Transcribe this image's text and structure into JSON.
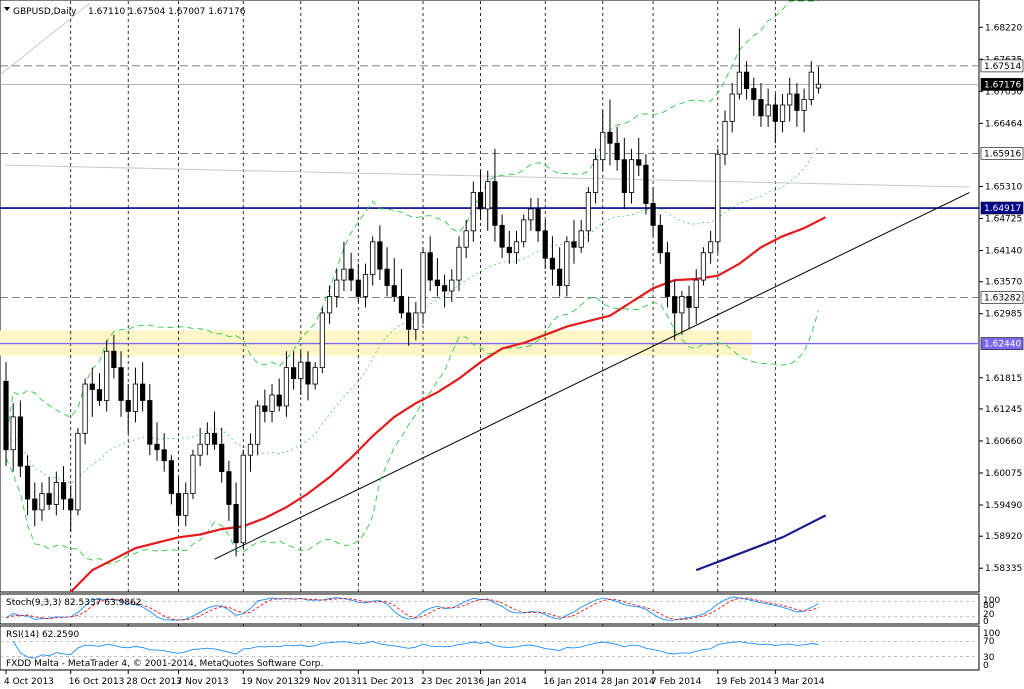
{
  "header": {
    "symbol": "GBPUSD,Daily",
    "ohlc": "1.67110 1.67504 1.67007 1.67176"
  },
  "chart_data": {
    "type": "candlestick",
    "title": "GBPUSD,Daily",
    "ylim": [
      1.579,
      1.687
    ],
    "y_ticks": [
      "1.68220",
      "1.67635",
      "1.67050",
      "1.66464",
      "1.65310",
      "1.64725",
      "1.64140",
      "1.63570",
      "1.62985",
      "1.61815",
      "1.61245",
      "1.60660",
      "1.60075",
      "1.59490",
      "1.58920",
      "1.58335"
    ],
    "x_ticks": [
      "4 Oct 2013",
      "16 Oct 2013",
      "28 Oct 2013",
      "7 Nov 2013",
      "19 Nov 2013",
      "29 Nov 2013",
      "11 Dec 2013",
      "23 Dec 2013",
      "6 Jan 2014",
      "16 Jan 2014",
      "28 Jan 2014",
      "7 Feb 2014",
      "19 Feb 2014",
      "3 Mar 2014"
    ],
    "price_labels": [
      {
        "value": 1.67514,
        "text": "1.67514"
      },
      {
        "value": 1.67176,
        "text": "1.67176"
      },
      {
        "value": 1.65916,
        "text": "1.65916"
      },
      {
        "value": 1.64917,
        "text": "1.64917"
      },
      {
        "value": 1.63282,
        "text": "1.63282"
      },
      {
        "value": 1.6244,
        "text": "1.62440"
      }
    ],
    "candles": [
      [
        1.6175,
        1.621,
        1.602,
        1.605
      ],
      [
        1.605,
        1.6135,
        1.601,
        1.611
      ],
      [
        1.611,
        1.614,
        1.6,
        1.602
      ],
      [
        1.602,
        1.604,
        1.593,
        1.596
      ],
      [
        1.596,
        1.599,
        1.591,
        1.594
      ],
      [
        1.594,
        1.599,
        1.592,
        1.597
      ],
      [
        1.597,
        1.6,
        1.594,
        1.595
      ],
      [
        1.595,
        1.601,
        1.593,
        1.599
      ],
      [
        1.599,
        1.602,
        1.594,
        1.596
      ],
      [
        1.596,
        1.5985,
        1.59,
        1.594
      ],
      [
        1.594,
        1.609,
        1.593,
        1.608
      ],
      [
        1.608,
        1.618,
        1.606,
        1.617
      ],
      [
        1.617,
        1.62,
        1.611,
        1.616
      ],
      [
        1.616,
        1.619,
        1.613,
        1.614
      ],
      [
        1.614,
        1.625,
        1.612,
        1.623
      ],
      [
        1.623,
        1.626,
        1.618,
        1.62
      ],
      [
        1.62,
        1.623,
        1.611,
        1.614
      ],
      [
        1.614,
        1.617,
        1.608,
        1.612
      ],
      [
        1.612,
        1.62,
        1.61,
        1.617
      ],
      [
        1.617,
        1.621,
        1.612,
        1.614
      ],
      [
        1.614,
        1.617,
        1.604,
        1.606
      ],
      [
        1.606,
        1.61,
        1.603,
        1.605
      ],
      [
        1.605,
        1.608,
        1.601,
        1.603
      ],
      [
        1.603,
        1.604,
        1.595,
        1.597
      ],
      [
        1.597,
        1.6,
        1.591,
        1.593
      ],
      [
        1.593,
        1.599,
        1.591,
        1.597
      ],
      [
        1.597,
        1.605,
        1.596,
        1.604
      ],
      [
        1.604,
        1.609,
        1.602,
        1.606
      ],
      [
        1.606,
        1.61,
        1.604,
        1.608
      ],
      [
        1.608,
        1.612,
        1.605,
        1.606
      ],
      [
        1.606,
        1.609,
        1.599,
        1.601
      ],
      [
        1.601,
        1.603,
        1.592,
        1.595
      ],
      [
        1.595,
        1.599,
        1.5855,
        1.588
      ],
      [
        1.588,
        1.605,
        1.587,
        1.604
      ],
      [
        1.604,
        1.608,
        1.601,
        1.606
      ],
      [
        1.606,
        1.614,
        1.604,
        1.613
      ],
      [
        1.613,
        1.616,
        1.61,
        1.612
      ],
      [
        1.612,
        1.617,
        1.61,
        1.615
      ],
      [
        1.615,
        1.618,
        1.612,
        1.613
      ],
      [
        1.613,
        1.623,
        1.611,
        1.62
      ],
      [
        1.62,
        1.623,
        1.616,
        1.618
      ],
      [
        1.618,
        1.623,
        1.615,
        1.621
      ],
      [
        1.621,
        1.623,
        1.614,
        1.617
      ],
      [
        1.617,
        1.621,
        1.616,
        1.62
      ],
      [
        1.62,
        1.631,
        1.619,
        1.63
      ],
      [
        1.63,
        1.635,
        1.628,
        1.633
      ],
      [
        1.633,
        1.638,
        1.631,
        1.636
      ],
      [
        1.636,
        1.643,
        1.634,
        1.638
      ],
      [
        1.638,
        1.641,
        1.634,
        1.636
      ],
      [
        1.636,
        1.639,
        1.632,
        1.633
      ],
      [
        1.633,
        1.639,
        1.631,
        1.637
      ],
      [
        1.637,
        1.644,
        1.635,
        1.643
      ],
      [
        1.643,
        1.646,
        1.636,
        1.638
      ],
      [
        1.638,
        1.642,
        1.633,
        1.635
      ],
      [
        1.635,
        1.64,
        1.632,
        1.633
      ],
      [
        1.633,
        1.638,
        1.629,
        1.63
      ],
      [
        1.63,
        1.633,
        1.624,
        1.627
      ],
      [
        1.627,
        1.632,
        1.625,
        1.63
      ],
      [
        1.63,
        1.642,
        1.628,
        1.641
      ],
      [
        1.641,
        1.644,
        1.634,
        1.636
      ],
      [
        1.636,
        1.64,
        1.633,
        1.635
      ],
      [
        1.635,
        1.637,
        1.631,
        1.634
      ],
      [
        1.634,
        1.638,
        1.632,
        1.636
      ],
      [
        1.636,
        1.644,
        1.634,
        1.642
      ],
      [
        1.642,
        1.647,
        1.64,
        1.645
      ],
      [
        1.645,
        1.654,
        1.643,
        1.652
      ],
      [
        1.652,
        1.656,
        1.647,
        1.649
      ],
      [
        1.649,
        1.656,
        1.645,
        1.654
      ],
      [
        1.654,
        1.66,
        1.643,
        1.646
      ],
      [
        1.646,
        1.648,
        1.64,
        1.642
      ],
      [
        1.642,
        1.645,
        1.639,
        1.641
      ],
      [
        1.641,
        1.645,
        1.639,
        1.643
      ],
      [
        1.643,
        1.648,
        1.642,
        1.647
      ],
      [
        1.647,
        1.651,
        1.645,
        1.649
      ],
      [
        1.649,
        1.651,
        1.643,
        1.645
      ],
      [
        1.645,
        1.647,
        1.638,
        1.64
      ],
      [
        1.64,
        1.644,
        1.635,
        1.638
      ],
      [
        1.638,
        1.642,
        1.633,
        1.635
      ],
      [
        1.635,
        1.644,
        1.633,
        1.643
      ],
      [
        1.643,
        1.647,
        1.639,
        1.642
      ],
      [
        1.642,
        1.647,
        1.641,
        1.645
      ],
      [
        1.645,
        1.653,
        1.643,
        1.652
      ],
      [
        1.652,
        1.66,
        1.65,
        1.658
      ],
      [
        1.658,
        1.667,
        1.656,
        1.663
      ],
      [
        1.663,
        1.669,
        1.657,
        1.661
      ],
      [
        1.661,
        1.664,
        1.656,
        1.658
      ],
      [
        1.658,
        1.662,
        1.649,
        1.652
      ],
      [
        1.652,
        1.66,
        1.65,
        1.658
      ],
      [
        1.658,
        1.662,
        1.655,
        1.657
      ],
      [
        1.657,
        1.659,
        1.648,
        1.65
      ],
      [
        1.65,
        1.653,
        1.644,
        1.646
      ],
      [
        1.646,
        1.648,
        1.639,
        1.641
      ],
      [
        1.641,
        1.643,
        1.631,
        1.633
      ],
      [
        1.633,
        1.636,
        1.625,
        1.63
      ],
      [
        1.63,
        1.634,
        1.626,
        1.633
      ],
      [
        1.633,
        1.635,
        1.627,
        1.631
      ],
      [
        1.631,
        1.638,
        1.628,
        1.636
      ],
      [
        1.636,
        1.642,
        1.635,
        1.641
      ],
      [
        1.641,
        1.645,
        1.639,
        1.643
      ],
      [
        1.643,
        1.66,
        1.641,
        1.659
      ],
      [
        1.659,
        1.667,
        1.657,
        1.665
      ],
      [
        1.665,
        1.672,
        1.663,
        1.67
      ],
      [
        1.67,
        1.682,
        1.669,
        1.674
      ],
      [
        1.674,
        1.676,
        1.669,
        1.671
      ],
      [
        1.671,
        1.673,
        1.666,
        1.669
      ],
      [
        1.669,
        1.672,
        1.664,
        1.666
      ],
      [
        1.666,
        1.671,
        1.664,
        1.668
      ],
      [
        1.668,
        1.67,
        1.661,
        1.665
      ],
      [
        1.665,
        1.67,
        1.663,
        1.668
      ],
      [
        1.668,
        1.673,
        1.665,
        1.67
      ],
      [
        1.67,
        1.672,
        1.664,
        1.667
      ],
      [
        1.667,
        1.671,
        1.663,
        1.669
      ],
      [
        1.669,
        1.676,
        1.668,
        1.674
      ],
      [
        1.6711,
        1.675,
        1.6701,
        1.6718
      ]
    ],
    "ma_red": [
      [
        9,
        1.579
      ],
      [
        12,
        1.583
      ],
      [
        15,
        1.585
      ],
      [
        18,
        1.587
      ],
      [
        21,
        1.588
      ],
      [
        24,
        1.589
      ],
      [
        27,
        1.5895
      ],
      [
        30,
        1.5905
      ],
      [
        33,
        1.591
      ],
      [
        36,
        1.5925
      ],
      [
        39,
        1.5945
      ],
      [
        42,
        1.597
      ],
      [
        45,
        1.6
      ],
      [
        48,
        1.6035
      ],
      [
        51,
        1.6075
      ],
      [
        54,
        1.611
      ],
      [
        57,
        1.6135
      ],
      [
        60,
        1.6155
      ],
      [
        63,
        1.618
      ],
      [
        66,
        1.621
      ],
      [
        69,
        1.6235
      ],
      [
        72,
        1.6245
      ],
      [
        75,
        1.626
      ],
      [
        78,
        1.6275
      ],
      [
        81,
        1.6285
      ],
      [
        84,
        1.6295
      ],
      [
        87,
        1.632
      ],
      [
        90,
        1.6345
      ],
      [
        93,
        1.636
      ],
      [
        96,
        1.6362
      ],
      [
        99,
        1.6368
      ],
      [
        102,
        1.639
      ],
      [
        105,
        1.642
      ],
      [
        108,
        1.644
      ],
      [
        111,
        1.6455
      ],
      [
        114,
        1.6475
      ]
    ],
    "ma_blue": [
      [
        96,
        1.583
      ],
      [
        100,
        1.585
      ],
      [
        104,
        1.587
      ],
      [
        108,
        1.589
      ],
      [
        111,
        1.591
      ],
      [
        114,
        1.593
      ]
    ],
    "trendlines": [
      {
        "from": [
          29,
          1.585
        ],
        "to": [
          134,
          1.652
        ],
        "color": "#000000"
      },
      {
        "from": [
          0,
          1.657
        ],
        "to": [
          134,
          1.653
        ],
        "color": "#c8c8c8"
      }
    ],
    "stoch_label": "Stoch(9,3,3) 82.5337 63.9862",
    "stoch_levels": [
      "100",
      "80",
      "20",
      "0"
    ],
    "rsi_label": "RSI(14) 62.2590",
    "rsi_levels": [
      "100",
      "70",
      "30",
      "0"
    ],
    "copyright": "FXDD Malta - MetaTrader 4, © 2001-2014, MetaQuotes Software Corp.",
    "colors": {
      "bull": "#ffffff",
      "bear": "#000000",
      "ma_red": "#e41a1c",
      "ma_blue": "#1a1a8c",
      "bands": "#2ecc40",
      "support": "#00008b",
      "band_zone": "#fff6c8",
      "zone_line": "#7b68ee"
    }
  }
}
